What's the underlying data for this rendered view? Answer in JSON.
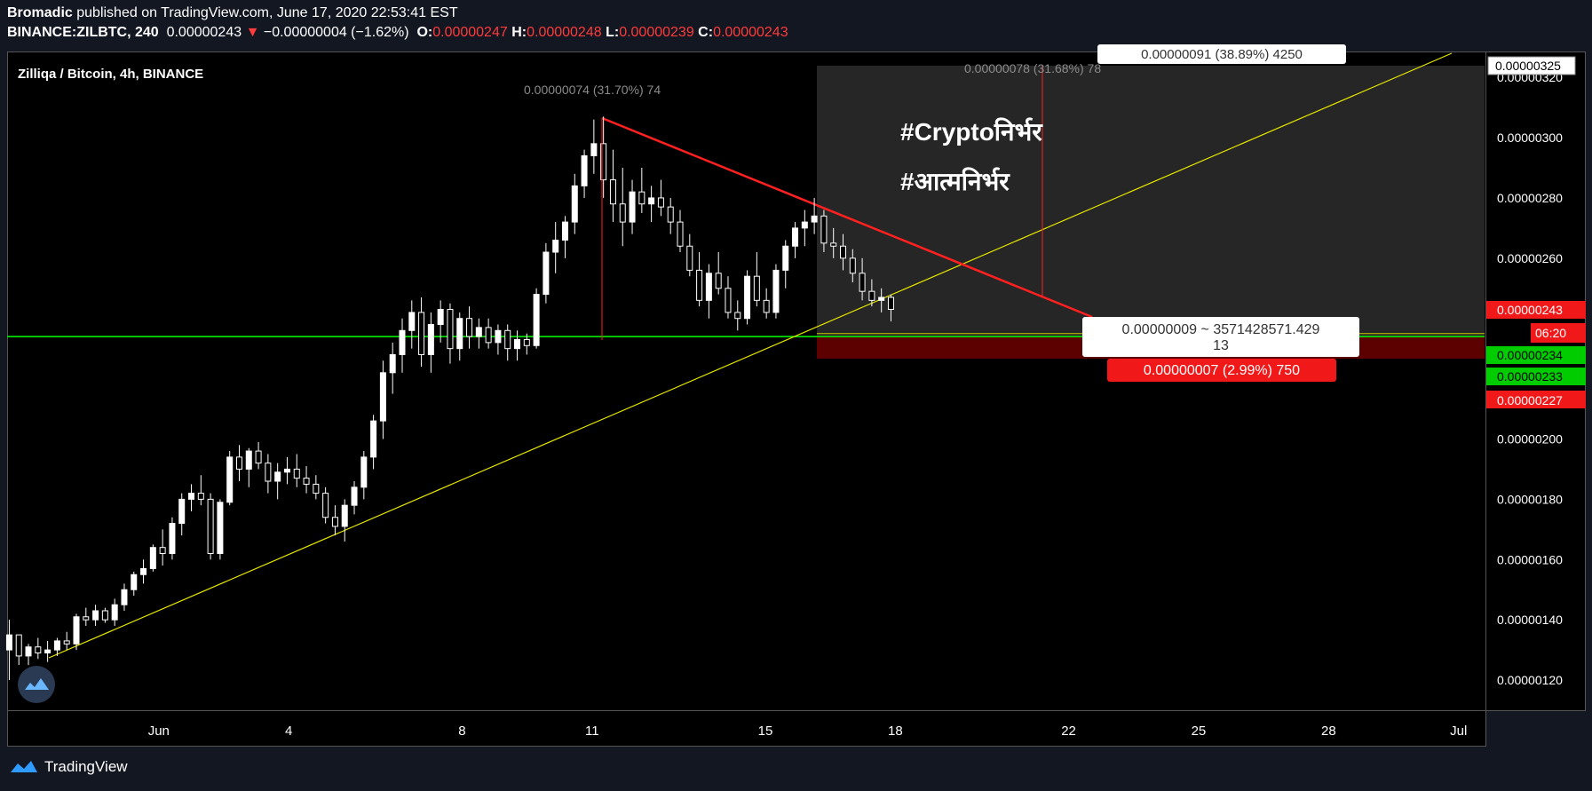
{
  "header": {
    "author": "Bromadic",
    "published": "published on TradingView.com, June 17, 2020 22:53:41 EST",
    "symbol": "BINANCE:ZILBTC, 240",
    "last": "0.00000243",
    "change": "−0.00000004 (−1.62%)",
    "o_label": "O:",
    "o": "0.00000247",
    "h_label": "H:",
    "h": "0.00000248",
    "l_label": "L:",
    "l": "0.00000239",
    "c_label": "C:",
    "c": "0.00000243"
  },
  "chart_title": "Zilliqa / Bitcoin, 4h, BINANCE",
  "annotations": {
    "hashtag1": "#Cryptoनिर्भर",
    "hashtag2": "#आत्मनिर्भर",
    "measure_top": "0.00000074 (31.70%) 74",
    "measure_right_top": "0.00000078 (31.68%) 78",
    "target_box": "0.00000091 (38.89%) 4250",
    "center_box_line1": "0.00000009 ~ 3571428571.429",
    "center_box_line2": "13",
    "stop_box": "0.00000007 (2.99%) 750"
  },
  "price_tags": {
    "top": "0.00000325",
    "current": "0.00000243",
    "countdown": "06:20",
    "green1": "0.00000234",
    "green2": "0.00000233",
    "stop": "0.00000227"
  },
  "footer": {
    "brand": "TradingView"
  },
  "colors": {
    "up": "#ffffff",
    "down": "#ffffff",
    "support": "#00ff00",
    "trend": "#e6e600",
    "resistance": "#ff2020",
    "stop_zone": "#5a0000",
    "target_zone": "#2a2a2a"
  },
  "chart_data": {
    "type": "candlestick",
    "title": "Zilliqa / Bitcoin, 4h, BINANCE",
    "ylim": [
      1.1e-06,
      3.28e-06
    ],
    "y_ticks": [
      "0.00000320",
      "0.00000300",
      "0.00000280",
      "0.00000260",
      "0.00000200",
      "0.00000180",
      "0.00000160",
      "0.00000140",
      "0.00000120"
    ],
    "x_ticks": [
      {
        "label": "Jun",
        "day": 1.0
      },
      {
        "label": "4",
        "day": 4.0
      },
      {
        "label": "8",
        "day": 8.0
      },
      {
        "label": "11",
        "day": 11.0
      },
      {
        "label": "15",
        "day": 15.0
      },
      {
        "label": "18",
        "day": 18.0
      },
      {
        "label": "22",
        "day": 22.0
      },
      {
        "label": "25",
        "day": 25.0
      },
      {
        "label": "28",
        "day": 28.0
      },
      {
        "label": "Jul",
        "day": 31.0
      }
    ],
    "x_range_days": [
      -2.5,
      31.6
    ],
    "candles": [
      [
        1.3,
        1.4,
        1.2,
        1.35
      ],
      [
        1.35,
        1.35,
        1.25,
        1.28
      ],
      [
        1.28,
        1.32,
        1.25,
        1.31
      ],
      [
        1.31,
        1.34,
        1.27,
        1.29
      ],
      [
        1.29,
        1.33,
        1.26,
        1.3
      ],
      [
        1.3,
        1.34,
        1.28,
        1.33
      ],
      [
        1.33,
        1.36,
        1.3,
        1.32
      ],
      [
        1.32,
        1.42,
        1.3,
        1.41
      ],
      [
        1.41,
        1.44,
        1.38,
        1.4
      ],
      [
        1.4,
        1.45,
        1.38,
        1.43
      ],
      [
        1.43,
        1.44,
        1.39,
        1.4
      ],
      [
        1.4,
        1.47,
        1.38,
        1.45
      ],
      [
        1.45,
        1.52,
        1.43,
        1.5
      ],
      [
        1.5,
        1.56,
        1.48,
        1.55
      ],
      [
        1.55,
        1.6,
        1.52,
        1.57
      ],
      [
        1.57,
        1.65,
        1.56,
        1.64
      ],
      [
        1.64,
        1.7,
        1.58,
        1.62
      ],
      [
        1.62,
        1.74,
        1.6,
        1.72
      ],
      [
        1.72,
        1.82,
        1.68,
        1.8
      ],
      [
        1.8,
        1.85,
        1.76,
        1.82
      ],
      [
        1.82,
        1.88,
        1.78,
        1.8
      ],
      [
        1.8,
        1.82,
        1.6,
        1.62
      ],
      [
        1.62,
        1.8,
        1.6,
        1.79
      ],
      [
        1.79,
        1.96,
        1.78,
        1.94
      ],
      [
        1.94,
        1.98,
        1.86,
        1.9
      ],
      [
        1.9,
        1.97,
        1.84,
        1.96
      ],
      [
        1.96,
        1.99,
        1.9,
        1.92
      ],
      [
        1.92,
        1.95,
        1.82,
        1.86
      ],
      [
        1.86,
        1.92,
        1.8,
        1.89
      ],
      [
        1.89,
        1.94,
        1.85,
        1.9
      ],
      [
        1.9,
        1.95,
        1.84,
        1.87
      ],
      [
        1.87,
        1.91,
        1.82,
        1.85
      ],
      [
        1.85,
        1.88,
        1.8,
        1.82
      ],
      [
        1.82,
        1.84,
        1.72,
        1.74
      ],
      [
        1.74,
        1.78,
        1.68,
        1.71
      ],
      [
        1.71,
        1.8,
        1.66,
        1.78
      ],
      [
        1.78,
        1.86,
        1.75,
        1.84
      ],
      [
        1.84,
        1.96,
        1.8,
        1.94
      ],
      [
        1.94,
        2.08,
        1.9,
        2.06
      ],
      [
        2.06,
        2.26,
        2.0,
        2.22
      ],
      [
        2.22,
        2.32,
        2.15,
        2.28
      ],
      [
        2.28,
        2.4,
        2.22,
        2.36
      ],
      [
        2.36,
        2.46,
        2.3,
        2.42
      ],
      [
        2.42,
        2.47,
        2.24,
        2.28
      ],
      [
        2.28,
        2.42,
        2.22,
        2.38
      ],
      [
        2.38,
        2.46,
        2.32,
        2.43
      ],
      [
        2.43,
        2.45,
        2.25,
        2.3
      ],
      [
        2.3,
        2.42,
        2.26,
        2.4
      ],
      [
        2.4,
        2.44,
        2.3,
        2.34
      ],
      [
        2.34,
        2.4,
        2.3,
        2.37
      ],
      [
        2.37,
        2.4,
        2.3,
        2.32
      ],
      [
        2.32,
        2.38,
        2.28,
        2.36
      ],
      [
        2.36,
        2.38,
        2.26,
        2.3
      ],
      [
        2.3,
        2.36,
        2.26,
        2.33
      ],
      [
        2.33,
        2.35,
        2.28,
        2.31
      ],
      [
        2.31,
        2.5,
        2.3,
        2.48
      ],
      [
        2.48,
        2.65,
        2.45,
        2.62
      ],
      [
        2.62,
        2.72,
        2.55,
        2.66
      ],
      [
        2.66,
        2.74,
        2.6,
        2.72
      ],
      [
        2.72,
        2.88,
        2.68,
        2.84
      ],
      [
        2.84,
        2.96,
        2.8,
        2.94
      ],
      [
        2.94,
        3.06,
        2.88,
        2.98
      ],
      [
        2.98,
        3.07,
        2.8,
        2.86
      ],
      [
        2.86,
        2.96,
        2.72,
        2.78
      ],
      [
        2.78,
        2.9,
        2.64,
        2.72
      ],
      [
        2.72,
        2.86,
        2.68,
        2.82
      ],
      [
        2.82,
        2.9,
        2.75,
        2.78
      ],
      [
        2.78,
        2.84,
        2.72,
        2.8
      ],
      [
        2.8,
        2.86,
        2.74,
        2.77
      ],
      [
        2.77,
        2.8,
        2.68,
        2.72
      ],
      [
        2.72,
        2.76,
        2.62,
        2.64
      ],
      [
        2.64,
        2.68,
        2.54,
        2.56
      ],
      [
        2.56,
        2.62,
        2.44,
        2.46
      ],
      [
        2.46,
        2.58,
        2.4,
        2.55
      ],
      [
        2.55,
        2.62,
        2.48,
        2.5
      ],
      [
        2.5,
        2.54,
        2.4,
        2.42
      ],
      [
        2.42,
        2.46,
        2.36,
        2.4
      ],
      [
        2.4,
        2.56,
        2.38,
        2.54
      ],
      [
        2.54,
        2.62,
        2.44,
        2.46
      ],
      [
        2.46,
        2.5,
        2.4,
        2.42
      ],
      [
        2.42,
        2.58,
        2.4,
        2.56
      ],
      [
        2.56,
        2.66,
        2.5,
        2.64
      ],
      [
        2.64,
        2.72,
        2.6,
        2.7
      ],
      [
        2.7,
        2.76,
        2.64,
        2.72
      ],
      [
        2.72,
        2.8,
        2.68,
        2.74
      ],
      [
        2.74,
        2.76,
        2.62,
        2.65
      ],
      [
        2.65,
        2.7,
        2.6,
        2.64
      ],
      [
        2.64,
        2.68,
        2.56,
        2.6
      ],
      [
        2.6,
        2.63,
        2.52,
        2.55
      ],
      [
        2.55,
        2.6,
        2.46,
        2.49
      ],
      [
        2.49,
        2.53,
        2.44,
        2.46
      ],
      [
        2.46,
        2.5,
        2.42,
        2.47
      ],
      [
        2.47,
        2.48,
        2.39,
        2.43
      ]
    ],
    "support_level": 2.34e-06,
    "current_price": 2.43e-06
  }
}
